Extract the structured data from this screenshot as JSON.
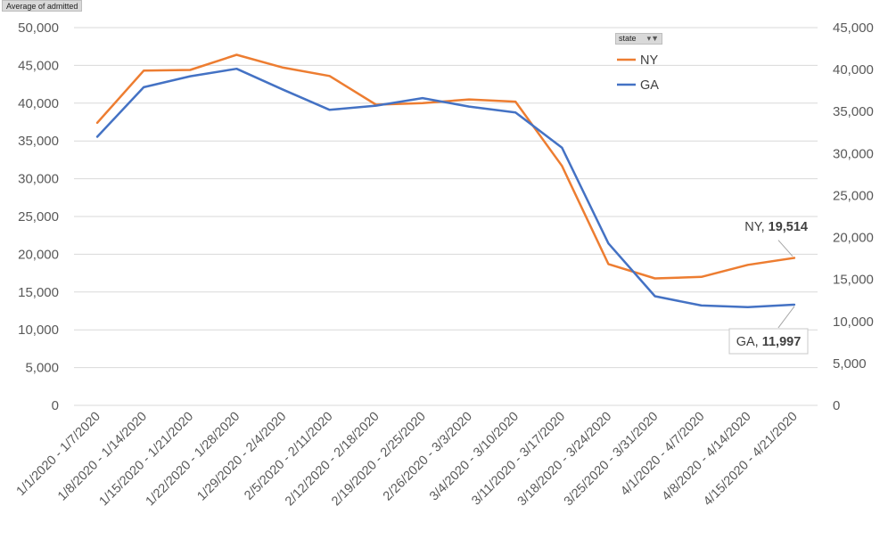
{
  "pivot_field": "Average of admitted",
  "legend_field": "state",
  "chart_data": {
    "type": "line",
    "categories": [
      "1/1/2020 - 1/7/2020",
      "1/8/2020 - 1/14/2020",
      "1/15/2020 - 1/21/2020",
      "1/22/2020 - 1/28/2020",
      "1/29/2020 - 2/4/2020",
      "2/5/2020 - 2/11/2020",
      "2/12/2020 - 2/18/2020",
      "2/19/2020 - 2/25/2020",
      "2/26/2020 - 3/3/2020",
      "3/4/2020 - 3/10/2020",
      "3/11/2020 - 3/17/2020",
      "3/18/2020 - 3/24/2020",
      "3/25/2020 - 3/31/2020",
      "4/1/2020 - 4/7/2020",
      "4/8/2020 - 4/14/2020",
      "4/15/2020 - 4/21/2020"
    ],
    "series": [
      {
        "name": "NY",
        "axis": "left",
        "color": "#ed7d31",
        "values": [
          37400,
          44300,
          44400,
          46400,
          44700,
          43600,
          39800,
          40000,
          40500,
          40200,
          31700,
          18700,
          16800,
          17000,
          18600,
          19514
        ],
        "end_label_name": "NY",
        "end_label_value": "19,514"
      },
      {
        "name": "GA",
        "axis": "right",
        "color": "#4472c4",
        "values": [
          32000,
          37900,
          39200,
          40100,
          37600,
          35200,
          35700,
          36600,
          35600,
          34900,
          30700,
          19300,
          13000,
          11900,
          11700,
          11997
        ],
        "end_label_name": "GA",
        "end_label_value": "11,997"
      }
    ],
    "left_axis": {
      "min": 0,
      "max": 50000,
      "step": 5000,
      "ticks": [
        "0",
        "5,000",
        "10,000",
        "15,000",
        "20,000",
        "25,000",
        "30,000",
        "35,000",
        "40,000",
        "45,000",
        "50,000"
      ]
    },
    "right_axis": {
      "min": 0,
      "max": 45000,
      "step": 5000,
      "ticks": [
        "0",
        "5,000",
        "10,000",
        "15,000",
        "20,000",
        "25,000",
        "30,000",
        "35,000",
        "40,000",
        "45,000"
      ]
    },
    "legend_position": "top-right",
    "grid": true
  }
}
